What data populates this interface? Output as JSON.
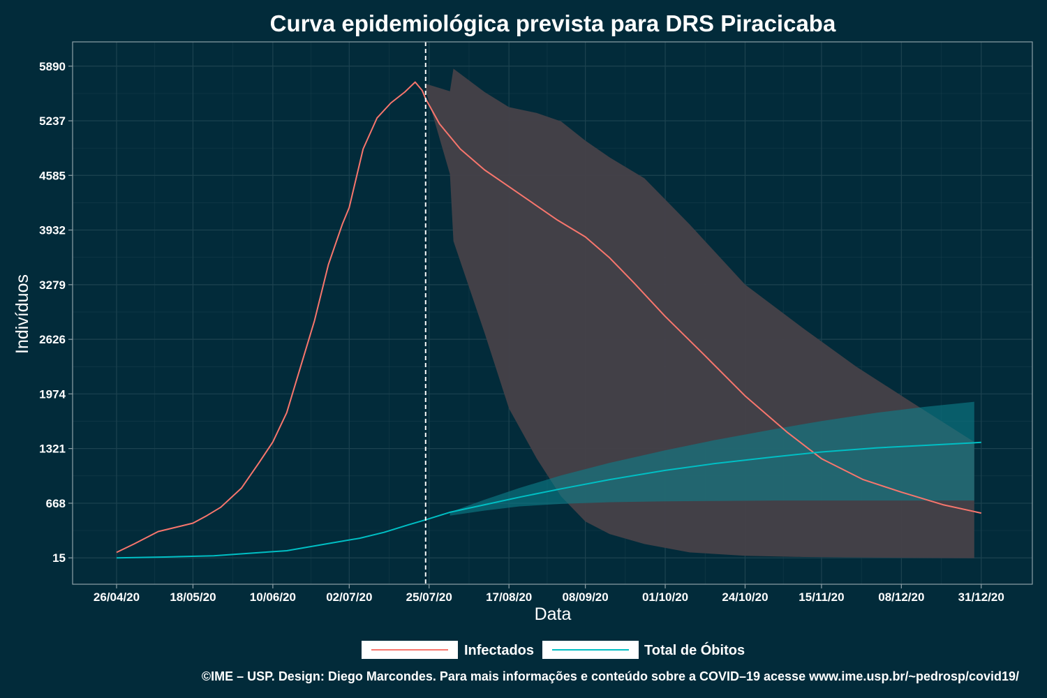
{
  "chart_data": {
    "type": "line",
    "title": "Curva epidemiológica prevista para DRS Piracicaba",
    "xlabel": "Data",
    "ylabel": "Indivíduos",
    "x_start": "2020-04-26",
    "x_ticks": [
      "26/04/20",
      "18/05/20",
      "10/06/20",
      "02/07/20",
      "25/07/20",
      "17/08/20",
      "08/09/20",
      "01/10/20",
      "24/10/20",
      "15/11/20",
      "08/12/20",
      "31/12/20"
    ],
    "y_ticks": [
      "15",
      "668",
      "1321",
      "1974",
      "2626",
      "3279",
      "3932",
      "4585",
      "5237",
      "5890"
    ],
    "ylim": [
      -300,
      6180
    ],
    "forecast_start": "2020-07-24",
    "grid": true,
    "legend_position": "bottom",
    "colors": {
      "background": "#022b3a",
      "infectados": "#f8766d",
      "obitos": "#00bfc4",
      "band_infectados": "#464148",
      "band_obitos": "#0e7f8b",
      "grid": "#1d4350"
    },
    "series": [
      {
        "name": "Infectados",
        "x": [
          "2020-04-26",
          "2020-05-01",
          "2020-05-08",
          "2020-05-15",
          "2020-05-18",
          "2020-05-22",
          "2020-05-26",
          "2020-06-01",
          "2020-06-06",
          "2020-06-10",
          "2020-06-14",
          "2020-06-18",
          "2020-06-22",
          "2020-06-26",
          "2020-06-30",
          "2020-07-02",
          "2020-07-06",
          "2020-07-10",
          "2020-07-14",
          "2020-07-18",
          "2020-07-21",
          "2020-07-23",
          "2020-07-24",
          "2020-07-28",
          "2020-08-03",
          "2020-08-10",
          "2020-08-17",
          "2020-08-24",
          "2020-08-31",
          "2020-09-08",
          "2020-09-15",
          "2020-09-22",
          "2020-10-01",
          "2020-10-12",
          "2020-10-24",
          "2020-11-05",
          "2020-11-15",
          "2020-11-27",
          "2020-12-08",
          "2020-12-20",
          "2020-12-31"
        ],
        "values": [
          80,
          180,
          330,
          400,
          430,
          520,
          620,
          850,
          1150,
          1400,
          1750,
          2300,
          2850,
          3520,
          4000,
          4200,
          4900,
          5270,
          5450,
          5580,
          5700,
          5600,
          5500,
          5200,
          4900,
          4650,
          4450,
          4250,
          4050,
          3850,
          3600,
          3300,
          2900,
          2450,
          1950,
          1520,
          1200,
          950,
          800,
          650,
          550
        ]
      },
      {
        "name": "Total de Óbitos",
        "x": [
          "2020-04-26",
          "2020-05-10",
          "2020-05-24",
          "2020-06-07",
          "2020-06-14",
          "2020-06-21",
          "2020-06-28",
          "2020-07-05",
          "2020-07-12",
          "2020-07-19",
          "2020-07-24",
          "2020-07-31",
          "2020-08-10",
          "2020-08-20",
          "2020-09-01",
          "2020-09-15",
          "2020-10-01",
          "2020-10-15",
          "2020-11-01",
          "2020-11-15",
          "2020-12-01",
          "2020-12-15",
          "2020-12-31"
        ],
        "values": [
          15,
          25,
          40,
          80,
          100,
          150,
          200,
          250,
          320,
          410,
          470,
          560,
          650,
          740,
          840,
          950,
          1060,
          1140,
          1220,
          1280,
          1330,
          1360,
          1395
        ]
      }
    ],
    "bands": [
      {
        "series": "Infectados",
        "x": [
          "2020-07-24",
          "2020-07-31",
          "2020-08-01",
          "2020-08-10",
          "2020-08-17",
          "2020-08-25",
          "2020-09-01",
          "2020-09-08",
          "2020-09-15",
          "2020-09-25",
          "2020-10-08",
          "2020-10-24",
          "2020-11-10",
          "2020-11-25",
          "2020-12-10",
          "2020-12-29"
        ],
        "lower": [
          5600,
          4600,
          3800,
          2700,
          1800,
          1200,
          750,
          450,
          300,
          180,
          80,
          40,
          25,
          20,
          15,
          10
        ],
        "upper": [
          5680,
          5590,
          5860,
          5580,
          5400,
          5330,
          5230,
          5000,
          4800,
          4550,
          4000,
          3280,
          2750,
          2300,
          1900,
          1400
        ]
      },
      {
        "series": "Total de Óbitos",
        "x": [
          "2020-07-31",
          "2020-08-10",
          "2020-08-20",
          "2020-09-01",
          "2020-09-15",
          "2020-10-01",
          "2020-10-15",
          "2020-11-01",
          "2020-11-15",
          "2020-12-01",
          "2020-12-15",
          "2020-12-29"
        ],
        "lower": [
          520,
          580,
          630,
          660,
          680,
          690,
          695,
          700,
          700,
          700,
          700,
          700
        ],
        "upper": [
          560,
          710,
          850,
          1000,
          1150,
          1300,
          1420,
          1550,
          1650,
          1750,
          1820,
          1880
        ]
      }
    ]
  },
  "legend": {
    "items": [
      {
        "label": "Infectados",
        "color": "#f8766d"
      },
      {
        "label": "Total de Óbitos",
        "color": "#00bfc4"
      }
    ]
  },
  "caption": "©IME – USP. Design: Diego Marcondes. Para mais informações e conteúdo sobre a COVID–19 acesse www.ime.usp.br/~pedrosp/covid19/"
}
